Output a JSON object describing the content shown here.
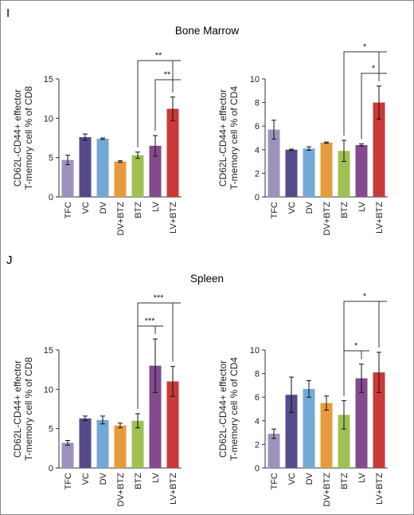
{
  "panels": [
    {
      "letter": "I",
      "title": "Bone Marrow"
    },
    {
      "letter": "J",
      "title": "Spleen"
    }
  ],
  "chart_data": [
    {
      "type": "bar",
      "panel": "I",
      "tissue": "Bone Marrow",
      "categories": [
        "TFC",
        "VC",
        "DV",
        "DV+BTZ",
        "BTZ",
        "LV",
        "LV+BTZ"
      ],
      "values": [
        4.7,
        7.6,
        7.4,
        4.5,
        5.3,
        6.5,
        11.2
      ],
      "errors": [
        0.6,
        0.4,
        0.1,
        0.1,
        0.4,
        1.3,
        1.5
      ],
      "ylabel": [
        "CD62L-CD44+ effector",
        "T-memory cell % of CD8"
      ],
      "ylim": [
        0,
        15
      ],
      "yticks": [
        0,
        5,
        10,
        15
      ],
      "colors": [
        "#9e92bd",
        "#564a8c",
        "#74a9d7",
        "#e69b3c",
        "#9fc153",
        "#834a8e",
        "#c93a38"
      ],
      "annotations": [
        {
          "from": "BTZ",
          "to": "LV+BTZ",
          "label": "**"
        },
        {
          "from": "LV",
          "to": "LV+BTZ",
          "label": "**"
        }
      ]
    },
    {
      "type": "bar",
      "panel": "I",
      "tissue": "Bone Marrow",
      "categories": [
        "TFC",
        "VC",
        "DV",
        "DV+BTZ",
        "BTZ",
        "LV",
        "LV+BTZ"
      ],
      "values": [
        5.7,
        4.0,
        4.1,
        4.6,
        3.9,
        4.4,
        8.0
      ],
      "errors": [
        0.8,
        0.05,
        0.15,
        0.05,
        0.9,
        0.1,
        1.4
      ],
      "ylabel": [
        "CD62L-CD44+ effector",
        "T-memory cell % of CD4"
      ],
      "ylim": [
        0,
        10
      ],
      "yticks": [
        0,
        2,
        4,
        6,
        8,
        10
      ],
      "colors": [
        "#9e92bd",
        "#564a8c",
        "#74a9d7",
        "#e69b3c",
        "#9fc153",
        "#834a8e",
        "#c93a38"
      ],
      "annotations": [
        {
          "from": "BTZ",
          "to": "LV+BTZ",
          "label": "*"
        },
        {
          "from": "LV",
          "to": "LV+BTZ",
          "label": "*"
        }
      ]
    },
    {
      "type": "bar",
      "panel": "J",
      "tissue": "Spleen",
      "categories": [
        "TFC",
        "VC",
        "DV",
        "DV+BTZ",
        "BTZ",
        "LV",
        "LV+BTZ"
      ],
      "values": [
        3.2,
        6.3,
        6.1,
        5.4,
        6.0,
        13.0,
        11.0
      ],
      "errors": [
        0.3,
        0.3,
        0.5,
        0.3,
        0.9,
        3.4,
        1.9
      ],
      "ylabel": [
        "CD62L-CD44+ effector",
        "T-memory cell % of CD8"
      ],
      "ylim": [
        0,
        15
      ],
      "yticks": [
        0,
        5,
        10,
        15
      ],
      "colors": [
        "#9e92bd",
        "#564a8c",
        "#74a9d7",
        "#e69b3c",
        "#9fc153",
        "#834a8e",
        "#c93a38"
      ],
      "annotations": [
        {
          "from": "BTZ",
          "to": "LV+BTZ",
          "label": "***"
        },
        {
          "from": "BTZ",
          "to": "LV",
          "label": "***"
        }
      ]
    },
    {
      "type": "bar",
      "panel": "J",
      "tissue": "Spleen",
      "categories": [
        "TFC",
        "VC",
        "DV",
        "DV+BTZ",
        "BTZ",
        "LV",
        "LV+BTZ"
      ],
      "values": [
        2.9,
        6.2,
        6.7,
        5.5,
        4.5,
        7.6,
        8.1
      ],
      "errors": [
        0.4,
        1.5,
        0.7,
        0.6,
        1.2,
        1.2,
        1.7
      ],
      "ylabel": [
        "CD62L-CD44+ effector",
        "T-memory cell % of CD4"
      ],
      "ylim": [
        0,
        10
      ],
      "yticks": [
        0,
        2,
        4,
        6,
        8,
        10
      ],
      "colors": [
        "#9e92bd",
        "#564a8c",
        "#74a9d7",
        "#e69b3c",
        "#9fc153",
        "#834a8e",
        "#c93a38"
      ],
      "annotations": [
        {
          "from": "BTZ",
          "to": "LV+BTZ",
          "label": "*"
        },
        {
          "from": "BTZ",
          "to": "LV",
          "label": "*"
        }
      ]
    }
  ]
}
